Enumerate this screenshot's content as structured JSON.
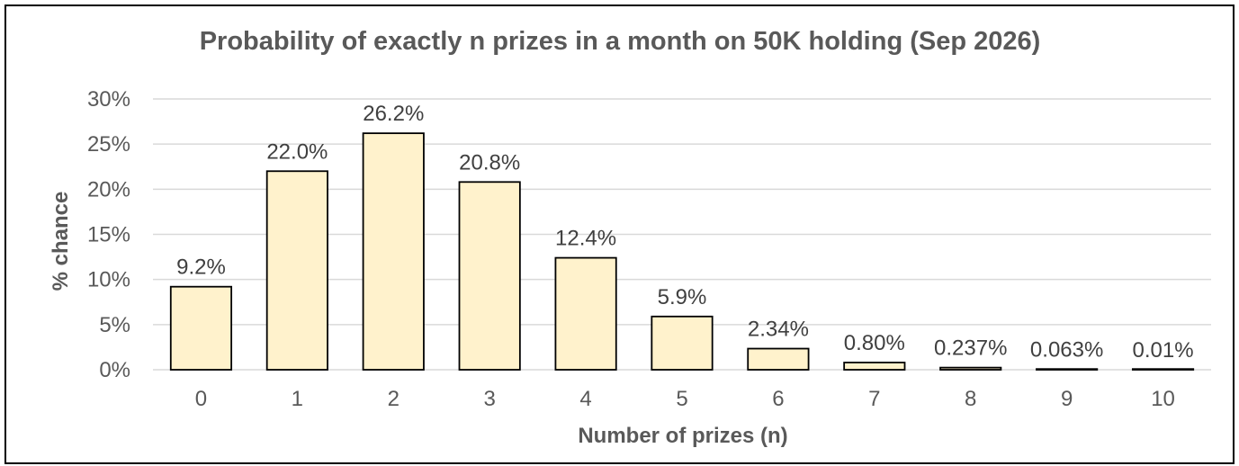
{
  "chart_data": {
    "type": "bar",
    "title": "Probability of exactly n prizes in a month on 50K holding (Sep 2026)",
    "xlabel": "Number of prizes (n)",
    "ylabel": "% chance",
    "categories": [
      "0",
      "1",
      "2",
      "3",
      "4",
      "5",
      "6",
      "7",
      "8",
      "9",
      "10"
    ],
    "values": [
      9.2,
      22.0,
      26.2,
      20.8,
      12.4,
      5.9,
      2.34,
      0.8,
      0.237,
      0.063,
      0.01
    ],
    "data_labels": [
      "9.2%",
      "22.0%",
      "26.2%",
      "20.8%",
      "12.4%",
      "5.9%",
      "2.34%",
      "0.80%",
      "0.237%",
      "0.063%",
      "0.01%"
    ],
    "ylim": [
      0,
      30
    ],
    "yticks": [
      0,
      5,
      10,
      15,
      20,
      25,
      30
    ],
    "ytick_labels": [
      "0%",
      "5%",
      "10%",
      "15%",
      "20%",
      "25%",
      "30%"
    ],
    "grid": true,
    "legend": "none",
    "colors": {
      "bar_fill": "#fff2cc",
      "bar_stroke": "#000000",
      "gridline": "#d9d9d9",
      "text": "#595959"
    }
  }
}
